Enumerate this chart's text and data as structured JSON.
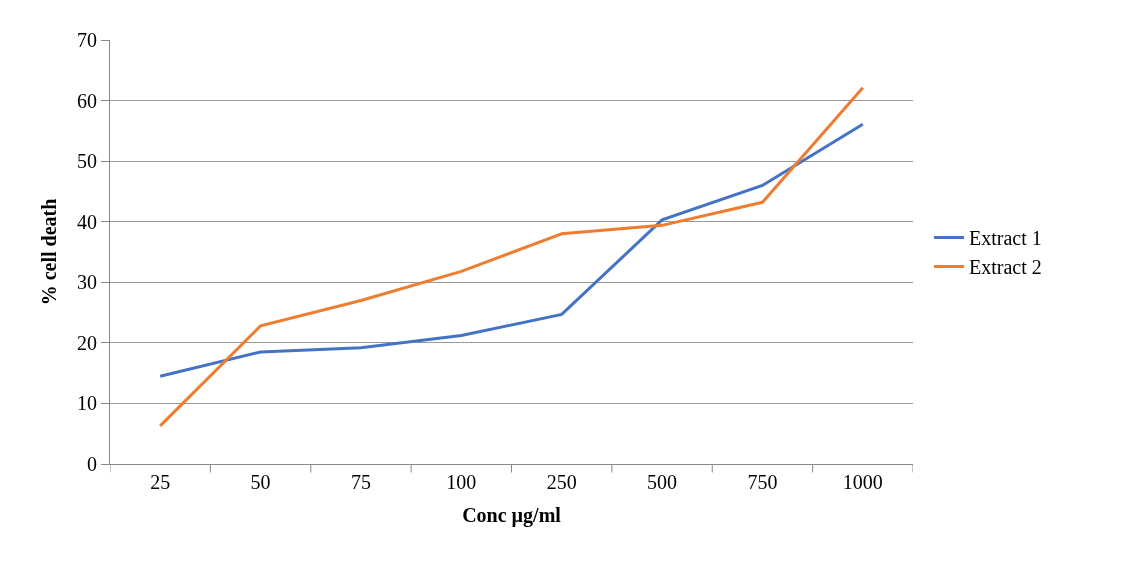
{
  "chart_data": {
    "type": "line",
    "xlabel": "Conc µg/ml",
    "ylabel": "% cell death",
    "categories": [
      "25",
      "50",
      "75",
      "100",
      "250",
      "500",
      "750",
      "1000"
    ],
    "series": [
      {
        "name": "Extract 1",
        "color": "#4472c4",
        "values": [
          14.5,
          18.5,
          19.2,
          21.2,
          24.7,
          40.3,
          46.0,
          56.1
        ]
      },
      {
        "name": "Extract 2",
        "color": "#ed7d31",
        "values": [
          6.3,
          22.8,
          27.0,
          31.8,
          38.0,
          39.4,
          43.2,
          62.1
        ]
      }
    ],
    "ylim": [
      0,
      70
    ],
    "yticks": [
      0,
      10,
      20,
      30,
      40,
      50,
      60,
      70
    ],
    "grid": "y",
    "legend": "right",
    "marker": "none",
    "line_style": "solid"
  }
}
